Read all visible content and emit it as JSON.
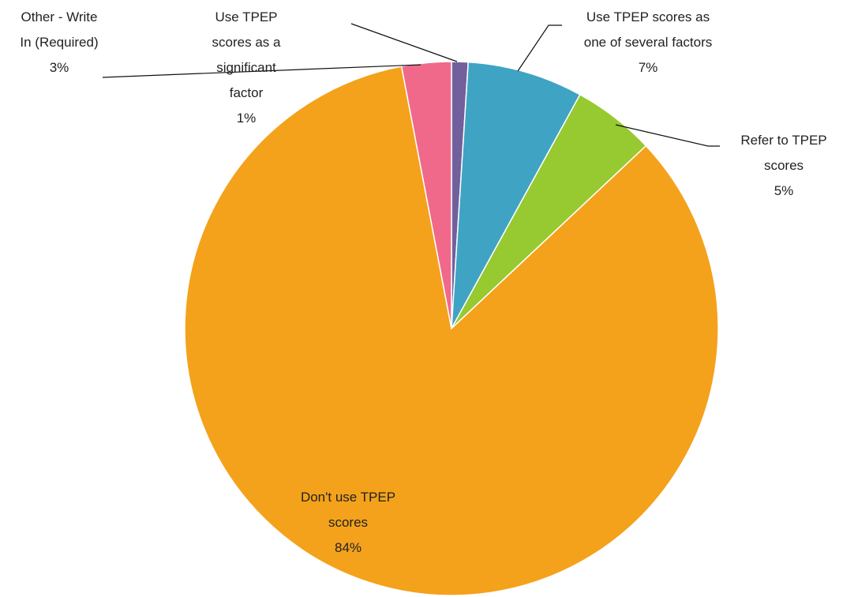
{
  "chart_data": {
    "type": "pie",
    "categories": [
      "Use TPEP scores as a significant factor",
      "Use TPEP scores as one of several factors",
      "Refer to TPEP scores",
      "Don't use TPEP scores",
      "Other - Write In (Required)"
    ],
    "values": [
      1,
      7,
      5,
      84,
      3
    ],
    "value_labels": [
      "1%",
      "7%",
      "5%",
      "84%",
      "3%"
    ],
    "colors": [
      "#72609c",
      "#3fa3c4",
      "#97c930",
      "#f4a21b",
      "#f0698a"
    ]
  }
}
